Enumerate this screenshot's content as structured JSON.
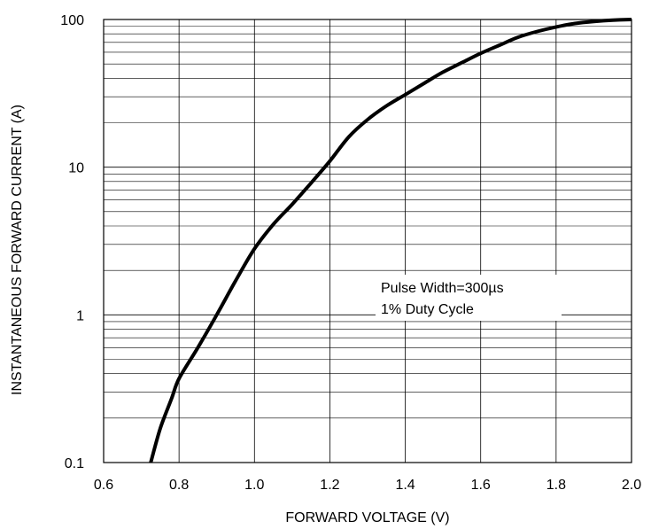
{
  "chart_data": {
    "type": "line",
    "title": "",
    "xlabel": "FORWARD VOLTAGE (V)",
    "ylabel": "INSTANTANEOUS FORWARD CURRENT (A)",
    "xscale": "linear",
    "yscale": "log",
    "xlim": [
      0.6,
      2.0
    ],
    "ylim": [
      0.1,
      100
    ],
    "grid": true,
    "x_ticks": [
      "0.6",
      "0.8",
      "1.0",
      "1.2",
      "1.4",
      "1.6",
      "1.8",
      "2.0"
    ],
    "y_ticks": [
      "0.1",
      "1",
      "10",
      "100"
    ],
    "annotations": [
      "Pulse Width=300µs",
      "1% Duty Cycle"
    ],
    "series": [
      {
        "x": [
          0.725,
          0.75,
          0.78,
          0.8,
          0.85,
          0.9,
          0.95,
          1.0,
          1.05,
          1.1,
          1.15,
          1.2,
          1.25,
          1.3,
          1.35,
          1.4,
          1.45,
          1.5,
          1.55,
          1.6,
          1.65,
          1.7,
          1.75,
          1.8,
          1.85,
          1.9,
          1.95,
          2.0
        ],
        "y": [
          0.1,
          0.17,
          0.27,
          0.37,
          0.6,
          1.0,
          1.7,
          2.8,
          4.1,
          5.6,
          7.8,
          11.0,
          16.0,
          21.0,
          26.0,
          31.0,
          37.0,
          44.0,
          51.0,
          59.0,
          67.0,
          76.0,
          83.0,
          89.0,
          94.0,
          97.0,
          99.0,
          100.0
        ]
      }
    ]
  }
}
